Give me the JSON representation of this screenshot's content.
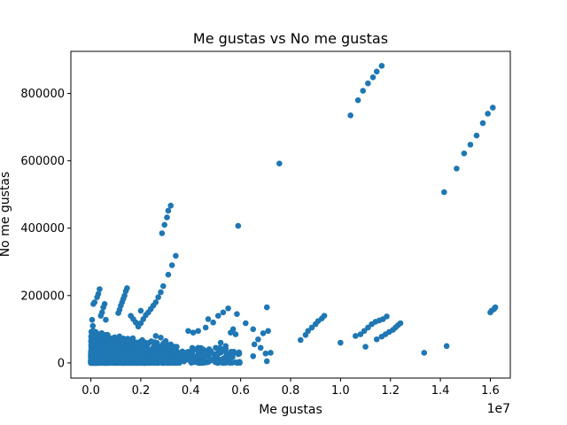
{
  "chart_data": {
    "type": "scatter",
    "title": "Me gustas vs No me gustas",
    "xlabel": "Me gustas",
    "ylabel": "No me gustas",
    "x_offset_label": "1e7",
    "x_scale": 10000000,
    "xlim": [
      -800000,
      16800000
    ],
    "ylim": [
      -45000,
      925000
    ],
    "x_ticks": [
      {
        "value": 0,
        "label": "0.0"
      },
      {
        "value": 2000000,
        "label": "0.2"
      },
      {
        "value": 4000000,
        "label": "0.4"
      },
      {
        "value": 6000000,
        "label": "0.6"
      },
      {
        "value": 8000000,
        "label": "0.8"
      },
      {
        "value": 10000000,
        "label": "1.0"
      },
      {
        "value": 12000000,
        "label": "1.2"
      },
      {
        "value": 14000000,
        "label": "1.4"
      },
      {
        "value": 16000000,
        "label": "1.6"
      }
    ],
    "y_ticks": [
      {
        "value": 0,
        "label": "0"
      },
      {
        "value": 200000,
        "label": "200000"
      },
      {
        "value": 400000,
        "label": "400000"
      },
      {
        "value": 600000,
        "label": "600000"
      },
      {
        "value": 800000,
        "label": "800000"
      }
    ],
    "grid": false,
    "marker_color": "#1f77b4",
    "series": [
      {
        "points": [
          [
            10400000,
            735000
          ],
          [
            10700000,
            780000
          ],
          [
            10900000,
            808000
          ],
          [
            11100000,
            830000
          ],
          [
            11300000,
            848000
          ],
          [
            11450000,
            865000
          ],
          [
            11650000,
            882000
          ],
          [
            14150000,
            507000
          ],
          [
            14650000,
            577000
          ],
          [
            14950000,
            622000
          ],
          [
            15200000,
            648000
          ],
          [
            15450000,
            675000
          ],
          [
            15700000,
            712000
          ],
          [
            15900000,
            740000
          ],
          [
            16100000,
            758000
          ],
          [
            7550000,
            592000
          ],
          [
            5900000,
            407000
          ],
          [
            2850000,
            385000
          ],
          [
            2950000,
            410000
          ],
          [
            3050000,
            432000
          ],
          [
            3100000,
            452000
          ],
          [
            3200000,
            467000
          ],
          [
            3400000,
            318000
          ],
          [
            3250000,
            290000
          ],
          [
            3100000,
            262000
          ],
          [
            2900000,
            228000
          ],
          [
            2800000,
            210000
          ],
          [
            2700000,
            195000
          ],
          [
            2600000,
            180000
          ],
          [
            2500000,
            170000
          ],
          [
            2400000,
            160000
          ],
          [
            2300000,
            150000
          ],
          [
            2200000,
            142000
          ],
          [
            2100000,
            130000
          ],
          [
            2000000,
            118000
          ],
          [
            1900000,
            108000
          ],
          [
            1450000,
            222000
          ],
          [
            1400000,
            213000
          ],
          [
            1350000,
            200000
          ],
          [
            1300000,
            190000
          ],
          [
            1250000,
            180000
          ],
          [
            1200000,
            170000
          ],
          [
            1150000,
            158000
          ],
          [
            1100000,
            148000
          ],
          [
            350000,
            219000
          ],
          [
            300000,
            205000
          ],
          [
            250000,
            195000
          ],
          [
            150000,
            180000
          ],
          [
            100000,
            175000
          ],
          [
            550000,
            175000
          ],
          [
            500000,
            165000
          ],
          [
            450000,
            150000
          ],
          [
            400000,
            140000
          ],
          [
            600000,
            128000
          ],
          [
            50000,
            128000
          ],
          [
            80000,
            110000
          ],
          [
            100000,
            95000
          ],
          [
            1600000,
            140000
          ],
          [
            1700000,
            130000
          ],
          [
            1800000,
            120000
          ],
          [
            2000000,
            155000
          ],
          [
            5500000,
            162000
          ],
          [
            5300000,
            150000
          ],
          [
            5100000,
            140000
          ],
          [
            4700000,
            130000
          ],
          [
            4900000,
            120000
          ],
          [
            4600000,
            105000
          ],
          [
            4300000,
            95000
          ],
          [
            3900000,
            95000
          ],
          [
            4100000,
            90000
          ],
          [
            7050000,
            165000
          ],
          [
            5850000,
            145000
          ],
          [
            6200000,
            118000
          ],
          [
            6500000,
            100000
          ],
          [
            6900000,
            88000
          ],
          [
            7100000,
            95000
          ],
          [
            6700000,
            70000
          ],
          [
            6550000,
            55000
          ],
          [
            6800000,
            45000
          ],
          [
            7000000,
            28000
          ],
          [
            7200000,
            30000
          ],
          [
            6500000,
            20000
          ],
          [
            7050000,
            5000
          ],
          [
            8400000,
            68000
          ],
          [
            8600000,
            83000
          ],
          [
            8700000,
            95000
          ],
          [
            8850000,
            105000
          ],
          [
            9000000,
            115000
          ],
          [
            9100000,
            124000
          ],
          [
            9250000,
            132000
          ],
          [
            9350000,
            140000
          ],
          [
            10000000,
            60000
          ],
          [
            10600000,
            80000
          ],
          [
            10800000,
            85000
          ],
          [
            10950000,
            95000
          ],
          [
            11100000,
            105000
          ],
          [
            11250000,
            115000
          ],
          [
            11400000,
            122000
          ],
          [
            11550000,
            126000
          ],
          [
            11700000,
            130000
          ],
          [
            11850000,
            138000
          ],
          [
            11000000,
            48000
          ],
          [
            11450000,
            70000
          ],
          [
            11650000,
            78000
          ],
          [
            11800000,
            85000
          ],
          [
            11950000,
            92000
          ],
          [
            12100000,
            98000
          ],
          [
            12200000,
            105000
          ],
          [
            12300000,
            112000
          ],
          [
            12400000,
            118000
          ],
          [
            13350000,
            30000
          ],
          [
            14250000,
            50000
          ],
          [
            16000000,
            150000
          ],
          [
            16050000,
            155000
          ],
          [
            16150000,
            160000
          ],
          [
            16200000,
            165000
          ],
          [
            5700000,
            100000
          ],
          [
            5600000,
            90000
          ],
          [
            5800000,
            85000
          ],
          [
            5200000,
            60000
          ],
          [
            5400000,
            50000
          ],
          [
            5000000,
            45000
          ],
          [
            4800000,
            35000
          ],
          [
            4500000,
            30000
          ],
          [
            4200000,
            40000
          ],
          [
            3800000,
            30000
          ],
          [
            3500000,
            25000
          ],
          [
            3200000,
            55000
          ],
          [
            3000000,
            65000
          ],
          [
            2800000,
            75000
          ],
          [
            2600000,
            80000
          ]
        ]
      }
    ]
  }
}
